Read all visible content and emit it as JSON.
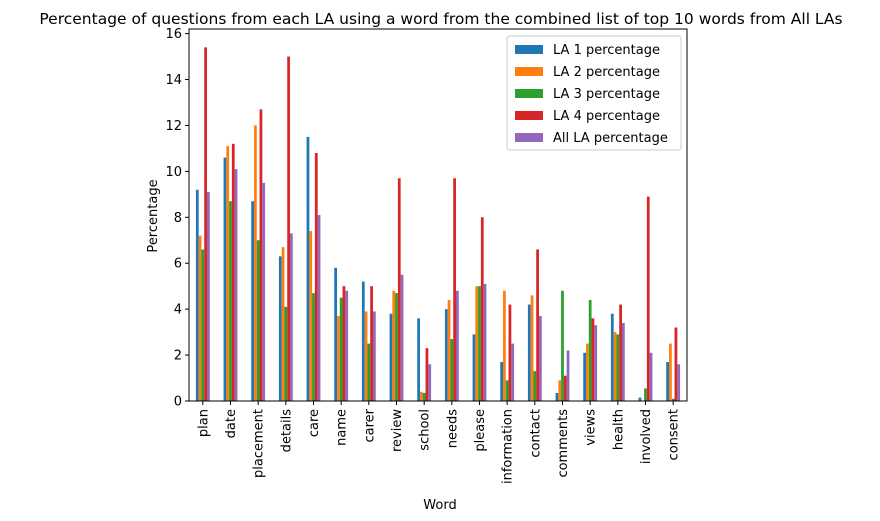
{
  "chart_data": {
    "type": "bar",
    "title": "Percentage of questions from each LA using a word from the combined list of top 10 words from All LAs",
    "xlabel": "Word",
    "ylabel": "Percentage",
    "ylim": [
      0,
      16.2
    ],
    "yticks": [
      "0",
      "2",
      "4",
      "6",
      "8",
      "10",
      "12",
      "14",
      "16"
    ],
    "legend_position": "top-right",
    "categories": [
      "plan",
      "date",
      "placement",
      "details",
      "care",
      "name",
      "carer",
      "review",
      "school",
      "needs",
      "please",
      "information",
      "contact",
      "comments",
      "views",
      "health",
      "involved",
      "consent"
    ],
    "series": [
      {
        "name": "LA 1 percentage",
        "color": "#1f77b4",
        "values": [
          9.2,
          10.6,
          8.7,
          6.3,
          11.5,
          5.8,
          5.2,
          3.8,
          3.6,
          4.0,
          2.9,
          1.7,
          4.2,
          0.35,
          2.1,
          3.8,
          0.15,
          1.7
        ]
      },
      {
        "name": "LA 2 percentage",
        "color": "#ff7f0e",
        "values": [
          7.2,
          11.1,
          12.0,
          6.7,
          7.4,
          3.7,
          3.9,
          4.8,
          0.4,
          4.4,
          5.0,
          4.8,
          4.6,
          0.9,
          2.5,
          3.0,
          0.0,
          2.5
        ]
      },
      {
        "name": "LA 3 percentage",
        "color": "#2ca02c",
        "values": [
          6.6,
          8.7,
          7.0,
          4.1,
          4.7,
          4.5,
          2.5,
          4.7,
          0.35,
          2.7,
          5.0,
          0.9,
          1.3,
          4.8,
          4.4,
          2.9,
          0.55,
          0.1
        ]
      },
      {
        "name": "LA 4 percentage",
        "color": "#d62728",
        "values": [
          15.4,
          11.2,
          12.7,
          15.0,
          10.8,
          5.0,
          5.0,
          9.7,
          2.3,
          9.7,
          8.0,
          4.2,
          6.6,
          1.1,
          3.6,
          4.2,
          8.9,
          3.2
        ]
      },
      {
        "name": "All LA percentage",
        "color": "#9467bd",
        "values": [
          9.1,
          10.1,
          9.5,
          7.3,
          8.1,
          4.8,
          3.9,
          5.5,
          1.6,
          4.8,
          5.1,
          2.5,
          3.7,
          2.2,
          3.3,
          3.4,
          2.1,
          1.6
        ]
      }
    ]
  }
}
